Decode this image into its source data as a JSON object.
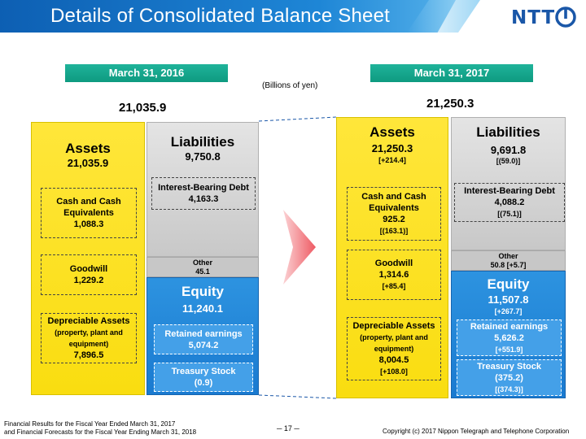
{
  "header": {
    "title": "Details of Consolidated Balance Sheet",
    "logo_text": "NTT"
  },
  "unit_note": "(Billions of yen)",
  "y2016": {
    "date": "March 31, 2016",
    "total": "21,035.9",
    "assets": {
      "title": "Assets",
      "value": "21,035.9",
      "cash": {
        "label1": "Cash and Cash",
        "label2": "Equivalents",
        "value": "1,088.3"
      },
      "goodwill": {
        "label": "Goodwill",
        "value": "1,229.2"
      },
      "depreciable": {
        "label": "Depreciable Assets",
        "sub1": "(property, plant and",
        "sub2": "equipment)",
        "value": "7,896.5"
      }
    },
    "liabilities": {
      "title": "Liabilities",
      "value": "9,750.8",
      "debt": {
        "label": "Interest-Bearing Debt",
        "value": "4,163.3"
      }
    },
    "other": {
      "label": "Other",
      "value": "45.1"
    },
    "equity": {
      "title": "Equity",
      "value": "11,240.1",
      "retained": {
        "label": "Retained earnings",
        "value": "5,074.2"
      },
      "treasury": {
        "label": "Treasury Stock",
        "value": "(0.9)"
      }
    }
  },
  "y2017": {
    "date": "March 31, 2017",
    "total": "21,250.3",
    "assets": {
      "title": "Assets",
      "value": "21,250.3",
      "change": "[+214.4]",
      "cash": {
        "label1": "Cash and Cash",
        "label2": "Equivalents",
        "value": "925.2",
        "change": "[(163.1)]"
      },
      "goodwill": {
        "label": "Goodwill",
        "value": "1,314.6",
        "change": "[+85.4]"
      },
      "depreciable": {
        "label": "Depreciable Assets",
        "sub1": "(property, plant and",
        "sub2": "equipment)",
        "value": "8,004.5",
        "change": "[+108.0]"
      }
    },
    "liabilities": {
      "title": "Liabilities",
      "value": "9,691.8",
      "change": "[(59.0)]",
      "debt": {
        "label": "Interest-Bearing Debt",
        "value": "4,088.2",
        "change": "[(75.1)]"
      }
    },
    "other": {
      "label": "Other",
      "value": "50.8 [+5.7]"
    },
    "equity": {
      "title": "Equity",
      "value": "11,507.8",
      "change": "[+267.7]",
      "retained": {
        "label": "Retained earnings",
        "value": "5,626.2",
        "change": "[+551.9]"
      },
      "treasury": {
        "label": "Treasury Stock",
        "value": "(375.2)",
        "change": "[(374.3)]"
      }
    }
  },
  "footer": {
    "left1": "Financial Results for the Fiscal Year Ended March 31, 2017",
    "left2": "and Financial Forecasts for the Fiscal Year Ending March 31, 2018",
    "page": "─ 17 ─",
    "copyright": "Copyright (c) 2017 Nippon Telegraph and Telephone Corporation"
  },
  "colors": {
    "header_blue": "#1e86d6",
    "banner_teal": "#0e9a80",
    "assets_yellow": "#f9dd10",
    "liabilities_gray": "#c8c8c8",
    "equity_blue": "#1a7ad0",
    "arrow_pink": "#f06a72"
  }
}
